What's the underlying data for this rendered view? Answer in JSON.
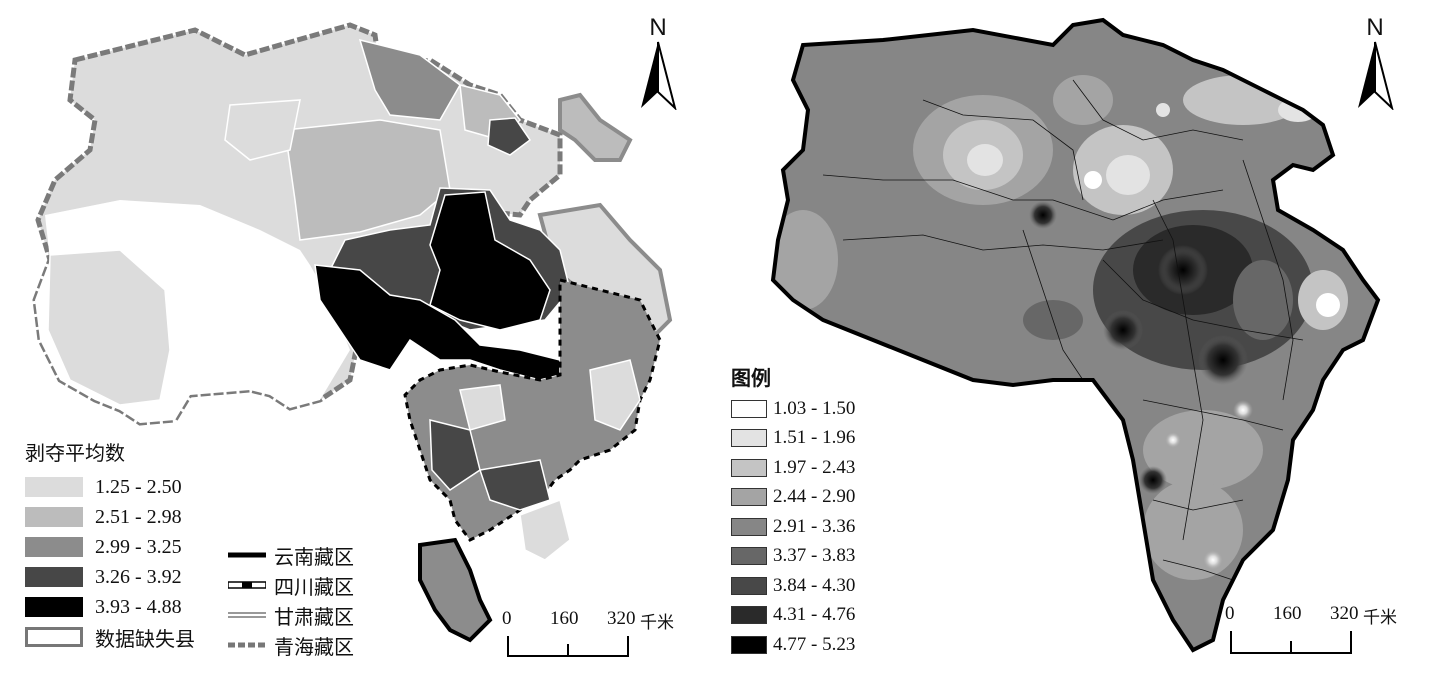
{
  "left_map": {
    "north_label": "N",
    "legend": {
      "title": "剥夺平均数",
      "items": [
        {
          "label": "1.25 - 2.50",
          "color": "#dcdcdc"
        },
        {
          "label": "2.51 - 2.98",
          "color": "#bcbcbc"
        },
        {
          "label": "2.99 - 3.25",
          "color": "#8c8c8c"
        },
        {
          "label": "3.26 - 3.92",
          "color": "#474747"
        },
        {
          "label": "3.93 - 4.88",
          "color": "#000000"
        },
        {
          "label": "数据缺失县",
          "color": "#ffffff"
        }
      ]
    },
    "zone_legend": {
      "items": [
        {
          "label": "云南藏区",
          "style": "solid-black"
        },
        {
          "label": "四川藏区",
          "style": "black-white-dash"
        },
        {
          "label": "甘肃藏区",
          "style": "gray-double"
        },
        {
          "label": "青海藏区",
          "style": "gray-dashed"
        }
      ]
    },
    "scale_bar": {
      "ticks": [
        "0",
        "160",
        "320"
      ],
      "unit": "千米"
    }
  },
  "right_map": {
    "north_label": "N",
    "legend": {
      "title": "图例",
      "items": [
        {
          "label": "1.03 - 1.50",
          "color": "#ffffff"
        },
        {
          "label": "1.51 - 1.96",
          "color": "#e3e3e3"
        },
        {
          "label": "1.97 - 2.43",
          "color": "#c4c4c4"
        },
        {
          "label": "2.44 - 2.90",
          "color": "#a4a4a4"
        },
        {
          "label": "2.91 - 3.36",
          "color": "#868686"
        },
        {
          "label": "3.37 - 3.83",
          "color": "#676767"
        },
        {
          "label": "3.84 - 4.30",
          "color": "#484848"
        },
        {
          "label": "4.31 - 4.76",
          "color": "#2a2a2a"
        },
        {
          "label": "4.77 - 5.23",
          "color": "#000000"
        }
      ]
    },
    "scale_bar": {
      "ticks": [
        "0",
        "160",
        "320"
      ],
      "unit": "千米"
    }
  }
}
